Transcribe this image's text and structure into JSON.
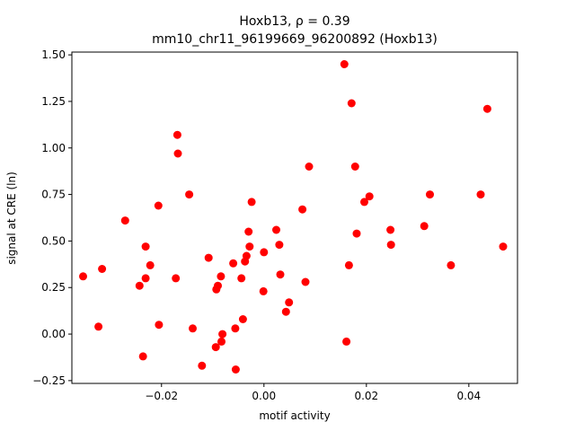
{
  "chart_data": {
    "type": "scatter",
    "title_line1": "Hoxb13, ρ = 0.39",
    "title_line2": "mm10_chr11_96199669_96200892 (Hoxb13)",
    "xlabel": "motif activity",
    "ylabel": "signal at CRE (ln)",
    "xlim": [
      -0.0375,
      0.0495
    ],
    "ylim": [
      -0.265,
      1.515
    ],
    "x_ticks": [
      -0.02,
      0.0,
      0.02,
      0.04
    ],
    "x_tick_labels": [
      "−0.02",
      "0.00",
      "0.02",
      "0.04"
    ],
    "y_ticks": [
      -0.25,
      0.0,
      0.25,
      0.5,
      0.75,
      1.0,
      1.25,
      1.5
    ],
    "y_tick_labels": [
      "−0.25",
      "0.00",
      "0.25",
      "0.50",
      "0.75",
      "1.00",
      "1.25",
      "1.50"
    ],
    "marker_color": "#ff0000",
    "grid": false,
    "points": [
      {
        "x": -0.0353,
        "y": 0.31
      },
      {
        "x": -0.0323,
        "y": 0.04
      },
      {
        "x": -0.0316,
        "y": 0.35
      },
      {
        "x": -0.0271,
        "y": 0.61
      },
      {
        "x": -0.0243,
        "y": 0.26
      },
      {
        "x": -0.0236,
        "y": -0.12
      },
      {
        "x": -0.0231,
        "y": 0.47
      },
      {
        "x": -0.0231,
        "y": 0.3
      },
      {
        "x": -0.0222,
        "y": 0.37
      },
      {
        "x": -0.0206,
        "y": 0.69
      },
      {
        "x": -0.0205,
        "y": 0.05
      },
      {
        "x": -0.0172,
        "y": 0.3
      },
      {
        "x": -0.0169,
        "y": 1.07
      },
      {
        "x": -0.0168,
        "y": 0.97
      },
      {
        "x": -0.0146,
        "y": 0.75
      },
      {
        "x": -0.0139,
        "y": 0.03
      },
      {
        "x": -0.0121,
        "y": -0.17
      },
      {
        "x": -0.0108,
        "y": 0.41
      },
      {
        "x": -0.0094,
        "y": -0.07
      },
      {
        "x": -0.0093,
        "y": 0.24
      },
      {
        "x": -0.009,
        "y": 0.26
      },
      {
        "x": -0.0084,
        "y": 0.31
      },
      {
        "x": -0.0083,
        "y": -0.04
      },
      {
        "x": -0.0081,
        "y": 0.0
      },
      {
        "x": -0.006,
        "y": 0.38
      },
      {
        "x": -0.0056,
        "y": 0.03
      },
      {
        "x": -0.0055,
        "y": -0.19
      },
      {
        "x": -0.0044,
        "y": 0.3
      },
      {
        "x": -0.0041,
        "y": 0.08
      },
      {
        "x": -0.0037,
        "y": 0.39
      },
      {
        "x": -0.0034,
        "y": 0.42
      },
      {
        "x": -0.003,
        "y": 0.55
      },
      {
        "x": -0.0028,
        "y": 0.47
      },
      {
        "x": -0.0024,
        "y": 0.71
      },
      {
        "x": -0.0001,
        "y": 0.23
      },
      {
        "x": 0.0,
        "y": 0.44
      },
      {
        "x": 0.0024,
        "y": 0.56
      },
      {
        "x": 0.003,
        "y": 0.48
      },
      {
        "x": 0.0032,
        "y": 0.32
      },
      {
        "x": 0.0043,
        "y": 0.12
      },
      {
        "x": 0.0049,
        "y": 0.17
      },
      {
        "x": 0.0075,
        "y": 0.67
      },
      {
        "x": 0.0081,
        "y": 0.28
      },
      {
        "x": 0.0088,
        "y": 0.9
      },
      {
        "x": 0.0157,
        "y": 1.45
      },
      {
        "x": 0.0161,
        "y": -0.04
      },
      {
        "x": 0.0166,
        "y": 0.37
      },
      {
        "x": 0.0171,
        "y": 1.24
      },
      {
        "x": 0.0178,
        "y": 0.9
      },
      {
        "x": 0.0181,
        "y": 0.54
      },
      {
        "x": 0.0196,
        "y": 0.71
      },
      {
        "x": 0.0206,
        "y": 0.74
      },
      {
        "x": 0.0247,
        "y": 0.56
      },
      {
        "x": 0.0248,
        "y": 0.48
      },
      {
        "x": 0.0313,
        "y": 0.58
      },
      {
        "x": 0.0324,
        "y": 0.75
      },
      {
        "x": 0.0365,
        "y": 0.37
      },
      {
        "x": 0.0423,
        "y": 0.75
      },
      {
        "x": 0.0436,
        "y": 1.21
      },
      {
        "x": 0.0467,
        "y": 0.47
      }
    ]
  }
}
